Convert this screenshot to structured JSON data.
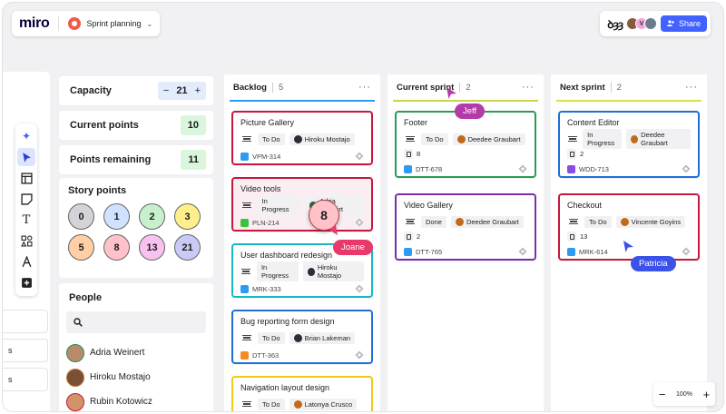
{
  "app": {
    "logo": "miro",
    "board_name": "Sprint planning"
  },
  "header": {
    "reactions": "ꝺȝȝ",
    "avatar_letter": "V",
    "share_label": "Share"
  },
  "left_tabs": [
    "",
    "s",
    "s"
  ],
  "stats": {
    "capacity": {
      "label": "Capacity",
      "value": "21",
      "minus": "−",
      "plus": "+"
    },
    "current_points": {
      "label": "Current points",
      "value": "10"
    },
    "points_remaining": {
      "label": "Points remaining",
      "value": "11"
    }
  },
  "story_points": {
    "title": "Story points",
    "values": [
      "0",
      "1",
      "2",
      "3",
      "5",
      "8",
      "13",
      "21"
    ],
    "colors": [
      "#d4d4d8",
      "#cfe3ff",
      "#c8f0cf",
      "#ffef8a",
      "#ffcfa5",
      "#ffc2c9",
      "#f7c2f0",
      "#c9caf5"
    ]
  },
  "people": {
    "title": "People",
    "search_placeholder": "",
    "list": [
      "Adria Weinert",
      "Hiroku Mostajo",
      "Rubin Kotowicz"
    ]
  },
  "columns": [
    {
      "name": "Backlog",
      "count": "5",
      "accent": "#2b9bf4",
      "cards": [
        {
          "title": "Picture Gallery",
          "status": "To Do",
          "assignee": "Hiroku Mostajo",
          "estimate": "",
          "id": "VPM-314",
          "type_color": "#2b9bf4",
          "border": "#c8173c"
        },
        {
          "title": "Video tools",
          "status": "In Progress",
          "assignee": "Adria Weinert",
          "estimate": "",
          "id": "PLN-214",
          "type_color": "#3ec13e",
          "border": "#c8173c"
        },
        {
          "title": "User dashboard redesign",
          "status": "In Progress",
          "assignee": "Hiroku Mostajo",
          "estimate": "",
          "id": "MRK-333",
          "type_color": "#2b9bf4",
          "border": "#16b8c4"
        },
        {
          "title": "Bug reporting form design",
          "status": "To Do",
          "assignee": "Brian Lakeman",
          "estimate": "",
          "id": "DTT-363",
          "type_color": "#f58d22",
          "border": "#1e6fd9"
        },
        {
          "title": "Navigation layout design",
          "status": "To Do",
          "assignee": "Latonya Crusco",
          "estimate": "",
          "id": "",
          "type_color": "#2b9bf4",
          "border": "#f2c81a"
        }
      ]
    },
    {
      "name": "Current sprint",
      "count": "2",
      "accent": "#c9d648",
      "cards": [
        {
          "title": "Footer",
          "status": "To Do",
          "assignee": "Deedee Graubart",
          "estimate": "8",
          "id": "DTT-678",
          "type_color": "#2b9bf4",
          "border": "#2a9a55"
        },
        {
          "title": "Video Gallery",
          "status": "Done",
          "assignee": "Deedee Graubart",
          "estimate": "2",
          "id": "DTT-765",
          "type_color": "#2b9bf4",
          "border": "#7b2ea8"
        }
      ]
    },
    {
      "name": "Next sprint",
      "count": "2",
      "accent": "#d8e04a",
      "cards": [
        {
          "title": "Content Editor",
          "status": "In Progress",
          "assignee": "Deedee Graubart",
          "estimate": "2",
          "id": "WDD-713",
          "type_color": "#8a4de8",
          "border": "#1e6fd9"
        },
        {
          "title": "Checkout",
          "status": "To Do",
          "assignee": "Vincente Goyins",
          "estimate": "13",
          "id": "MRK-614",
          "type_color": "#2b9bf4",
          "border": "#c8173c"
        }
      ]
    }
  ],
  "overlay": {
    "sticky_value": "8",
    "cursors": [
      {
        "name": "Jeff",
        "color": "#b33aa8"
      },
      {
        "name": "Joane",
        "color": "#e8396a"
      },
      {
        "name": "Patricia",
        "color": "#3b52e8"
      }
    ]
  },
  "zoom": {
    "minus": "−",
    "level": "100%",
    "plus": "+"
  }
}
